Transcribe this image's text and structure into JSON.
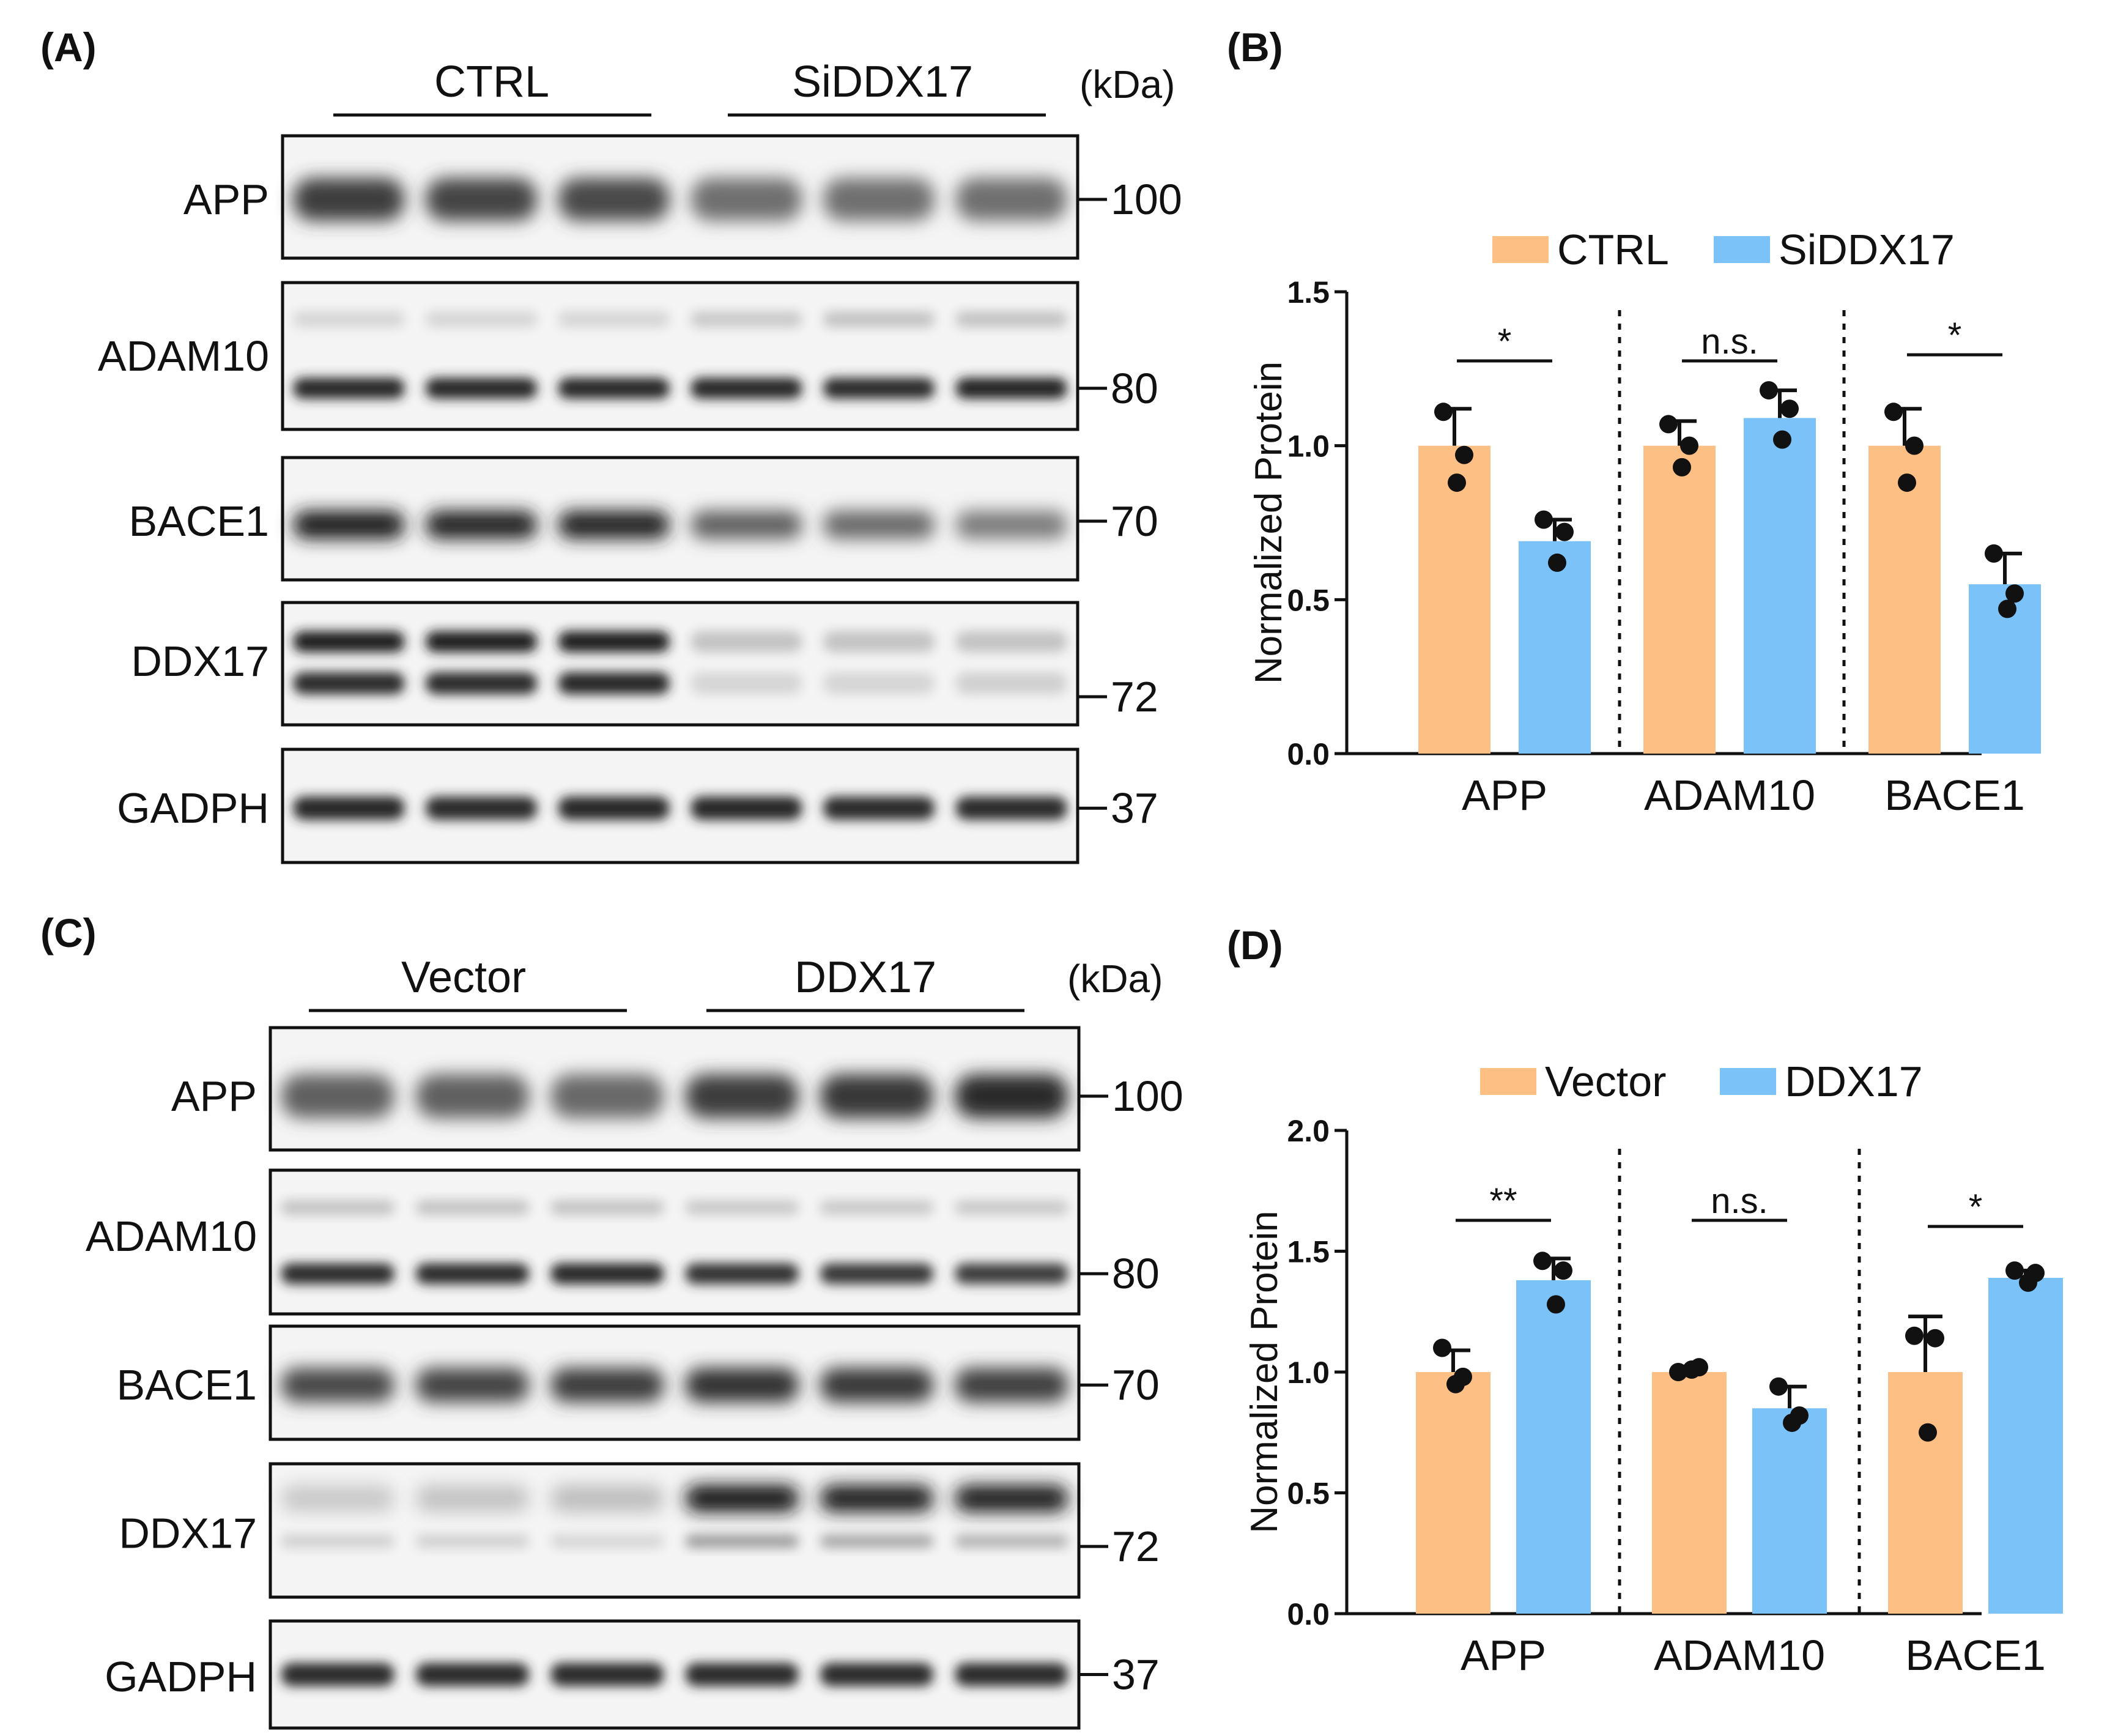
{
  "panels": {
    "A": "(A)",
    "B": "(B)",
    "C": "(C)",
    "D": "(D)"
  },
  "blots": [
    {
      "panel": "A",
      "groups": [
        "CTRL",
        "SiDDX17"
      ],
      "unit": "(kDa)",
      "rows": [
        {
          "protein": "APP",
          "marker": "100",
          "bands": [
            {
              "intensity": [
                0.78,
                0.74,
                0.72,
                0.55,
                0.55,
                0.55
              ]
            }
          ]
        },
        {
          "protein": "ADAM10",
          "marker": "80",
          "bands": [
            {
              "intensity": [
                0.1,
                0.1,
                0.1,
                0.15,
                0.18,
                0.18
              ]
            },
            {
              "intensity": [
                0.88,
                0.88,
                0.88,
                0.88,
                0.86,
                0.9
              ]
            }
          ]
        },
        {
          "protein": "BACE1",
          "marker": "70",
          "bands": [
            {
              "intensity": [
                0.92,
                0.9,
                0.9,
                0.62,
                0.58,
                0.5
              ]
            }
          ]
        },
        {
          "protein": "DDX17",
          "marker": "72",
          "bands": [
            {
              "intensity": [
                0.92,
                0.92,
                0.92,
                0.18,
                0.18,
                0.18
              ]
            },
            {
              "intensity": [
                0.85,
                0.85,
                0.88,
                0.1,
                0.1,
                0.12
              ]
            }
          ]
        },
        {
          "protein": "GADPH",
          "marker": "37",
          "bands": [
            {
              "intensity": [
                0.88,
                0.86,
                0.88,
                0.88,
                0.86,
                0.86
              ]
            }
          ]
        }
      ]
    },
    {
      "panel": "C",
      "groups": [
        "Vector",
        "DDX17"
      ],
      "unit": "(kDa)",
      "rows": [
        {
          "protein": "APP",
          "marker": "100",
          "bands": [
            {
              "intensity": [
                0.62,
                0.62,
                0.58,
                0.78,
                0.8,
                0.85
              ]
            }
          ]
        },
        {
          "protein": "ADAM10",
          "marker": "80",
          "bands": [
            {
              "intensity": [
                0.18,
                0.18,
                0.18,
                0.15,
                0.15,
                0.15
              ]
            },
            {
              "intensity": [
                0.86,
                0.86,
                0.88,
                0.82,
                0.8,
                0.78
              ]
            }
          ]
        },
        {
          "protein": "BACE1",
          "marker": "70",
          "bands": [
            {
              "intensity": [
                0.72,
                0.74,
                0.78,
                0.82,
                0.8,
                0.76
              ]
            }
          ]
        },
        {
          "protein": "DDX17",
          "marker": "72",
          "bands": [
            {
              "intensity": [
                0.15,
                0.18,
                0.2,
                0.95,
                0.92,
                0.92
              ]
            },
            {
              "intensity": [
                0.12,
                0.12,
                0.1,
                0.35,
                0.3,
                0.25
              ]
            }
          ]
        },
        {
          "protein": "GADPH",
          "marker": "37",
          "bands": [
            {
              "intensity": [
                0.86,
                0.86,
                0.86,
                0.86,
                0.86,
                0.86
              ]
            }
          ]
        }
      ]
    }
  ],
  "chart_data": [
    {
      "panel": "B",
      "type": "bar",
      "ylabel": "Normalized Protein",
      "ylim": [
        0,
        1.5
      ],
      "yticks": [
        "0.0",
        "0.5",
        "1.0",
        "1.5"
      ],
      "categories": [
        "APP",
        "ADAM10",
        "BACE1"
      ],
      "legend_position": "top",
      "series": [
        {
          "name": "CTRL",
          "color": "#FDBF84",
          "values": [
            1.0,
            1.0,
            1.0
          ],
          "sd": [
            0.12,
            0.08,
            0.12
          ],
          "points": [
            [
              1.11,
              0.97,
              0.88
            ],
            [
              1.07,
              1.0,
              0.93
            ],
            [
              1.11,
              1.0,
              0.88
            ]
          ]
        },
        {
          "name": "SiDDX17",
          "color": "#7AC2F7",
          "values": [
            0.69,
            1.09,
            0.55
          ],
          "sd": [
            0.07,
            0.09,
            0.1
          ],
          "points": [
            [
              0.76,
              0.72,
              0.62
            ],
            [
              1.18,
              1.12,
              1.02
            ],
            [
              0.65,
              0.52,
              0.47
            ]
          ]
        }
      ],
      "significance": [
        "*",
        "n.s.",
        "*"
      ],
      "grid": false
    },
    {
      "panel": "D",
      "type": "bar",
      "ylabel": "Normalized Protein",
      "ylim": [
        0,
        2.0
      ],
      "yticks": [
        "0.0",
        "0.5",
        "1.0",
        "1.5",
        "2.0"
      ],
      "categories": [
        "APP",
        "ADAM10",
        "BACE1"
      ],
      "legend_position": "top",
      "series": [
        {
          "name": "Vector",
          "color": "#FDBF84",
          "values": [
            1.0,
            1.0,
            1.0
          ],
          "sd": [
            0.09,
            0.02,
            0.23
          ],
          "points": [
            [
              1.1,
              0.98,
              0.95
            ],
            [
              1.0,
              1.02,
              1.01
            ],
            [
              1.15,
              1.14,
              0.75
            ]
          ]
        },
        {
          "name": "DDX17",
          "color": "#7AC2F7",
          "values": [
            1.38,
            0.85,
            1.39
          ],
          "sd": [
            0.09,
            0.09,
            0.03
          ],
          "points": [
            [
              1.46,
              1.42,
              1.28
            ],
            [
              0.94,
              0.82,
              0.79
            ],
            [
              1.42,
              1.41,
              1.37
            ]
          ]
        }
      ],
      "significance": [
        "**",
        "n.s.",
        "*"
      ],
      "grid": false
    }
  ]
}
